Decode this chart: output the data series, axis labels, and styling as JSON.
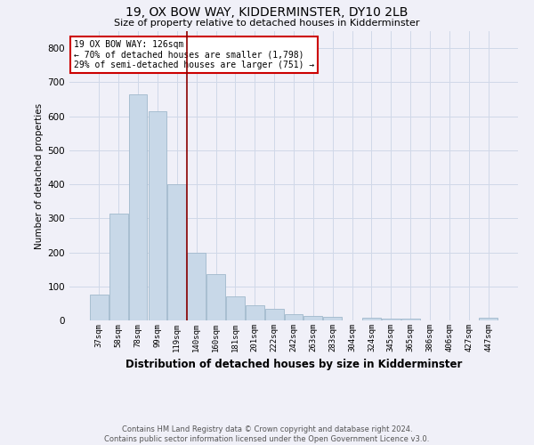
{
  "title": "19, OX BOW WAY, KIDDERMINSTER, DY10 2LB",
  "subtitle": "Size of property relative to detached houses in Kidderminster",
  "xlabel": "Distribution of detached houses by size in Kidderminster",
  "ylabel": "Number of detached properties",
  "categories": [
    "37sqm",
    "58sqm",
    "78sqm",
    "99sqm",
    "119sqm",
    "140sqm",
    "160sqm",
    "181sqm",
    "201sqm",
    "222sqm",
    "242sqm",
    "263sqm",
    "283sqm",
    "304sqm",
    "324sqm",
    "345sqm",
    "365sqm",
    "386sqm",
    "406sqm",
    "427sqm",
    "447sqm"
  ],
  "values": [
    75,
    315,
    665,
    615,
    400,
    200,
    135,
    70,
    45,
    35,
    18,
    12,
    10,
    0,
    7,
    5,
    5,
    0,
    0,
    0,
    7
  ],
  "bar_color": "#c8d8e8",
  "bar_edgecolor": "#a0b8cc",
  "ylim": [
    0,
    850
  ],
  "yticks": [
    0,
    100,
    200,
    300,
    400,
    500,
    600,
    700,
    800
  ],
  "vline_x": 4.5,
  "vline_color": "#8b0000",
  "annotation_line1": "19 OX BOW WAY: 126sqm",
  "annotation_line2": "← 70% of detached houses are smaller (1,798)",
  "annotation_line3": "29% of semi-detached houses are larger (751) →",
  "annotation_box_color": "#ffffff",
  "annotation_box_edgecolor": "#cc0000",
  "footer_line1": "Contains HM Land Registry data © Crown copyright and database right 2024.",
  "footer_line2": "Contains public sector information licensed under the Open Government Licence v3.0.",
  "bg_color": "#f0f0f8",
  "grid_color": "#d0d8e8"
}
